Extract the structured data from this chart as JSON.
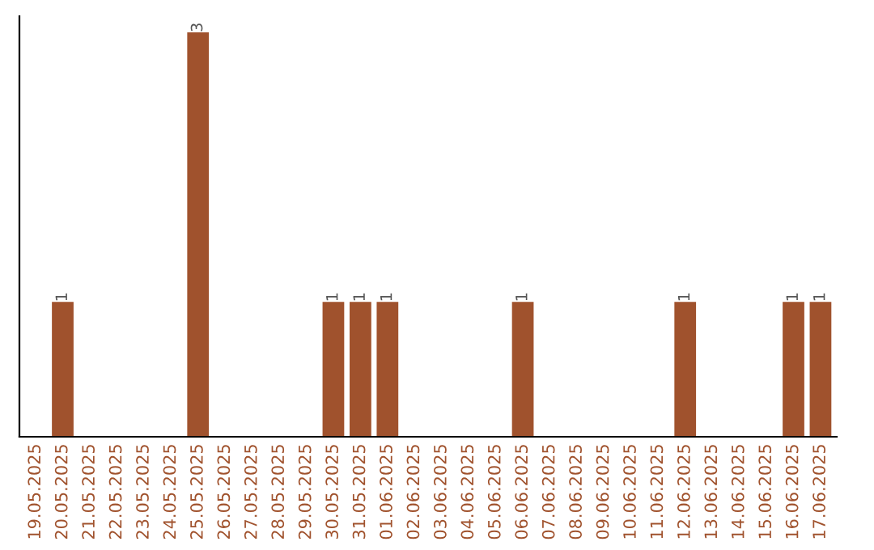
{
  "chart_data": {
    "type": "bar",
    "categories": [
      "19.05.2025",
      "20.05.2025",
      "21.05.2025",
      "22.05.2025",
      "23.05.2025",
      "24.05.2025",
      "25.05.2025",
      "26.05.2025",
      "27.05.2025",
      "28.05.2025",
      "29.05.2025",
      "30.05.2025",
      "31.05.2025",
      "01.06.2025",
      "02.06.2025",
      "03.06.2025",
      "04.06.2025",
      "05.06.2025",
      "06.06.2025",
      "07.06.2025",
      "08.06.2025",
      "09.06.2025",
      "10.06.2025",
      "11.06.2025",
      "12.06.2025",
      "13.06.2025",
      "14.06.2025",
      "15.06.2025",
      "16.06.2025",
      "17.06.2025"
    ],
    "values": [
      0,
      1,
      0,
      0,
      0,
      0,
      3,
      0,
      0,
      0,
      0,
      1,
      1,
      1,
      0,
      0,
      0,
      0,
      1,
      0,
      0,
      0,
      0,
      0,
      1,
      0,
      0,
      0,
      1,
      1
    ],
    "value_labels": [
      null,
      "1",
      null,
      null,
      null,
      null,
      "3",
      null,
      null,
      null,
      null,
      "1",
      "1",
      "1",
      null,
      null,
      null,
      null,
      "1",
      null,
      null,
      null,
      null,
      null,
      "1",
      null,
      null,
      null,
      "1",
      "1"
    ],
    "color": "#a0522d",
    "grid": false
  }
}
